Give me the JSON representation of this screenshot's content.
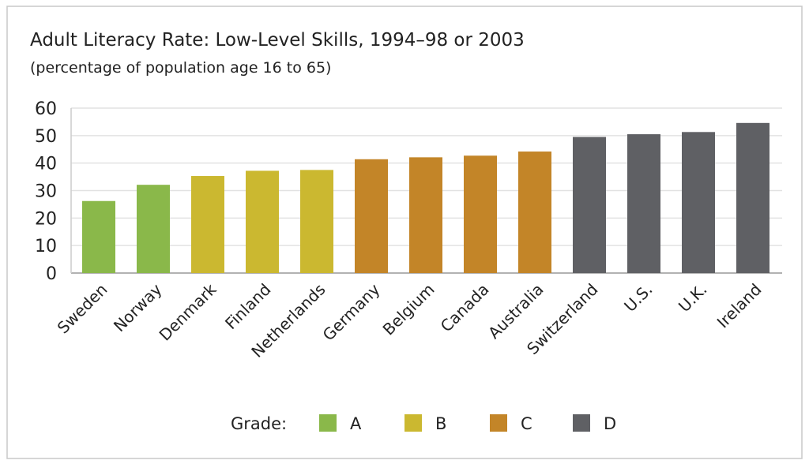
{
  "chart_data": {
    "type": "bar",
    "title": "Adult Literacy Rate: Low-Level Skills, 1994–98 or 2003",
    "subtitle": "(percentage of population age 16 to 65)",
    "xlabel": "",
    "ylabel": "",
    "ylim": [
      0,
      60
    ],
    "yticks": [
      0,
      10,
      20,
      30,
      40,
      50,
      60
    ],
    "grid": true,
    "categories": [
      "Sweden",
      "Norway",
      "Denmark",
      "Finland",
      "Netherlands",
      "Germany",
      "Belgium",
      "Canada",
      "Australia",
      "Switzerland",
      "U.S.",
      "U.K.",
      "Ireland"
    ],
    "values": [
      26.2,
      32.1,
      35.3,
      37.2,
      37.5,
      41.4,
      42.1,
      42.7,
      44.2,
      49.5,
      50.5,
      51.3,
      54.6
    ],
    "grades": [
      "A",
      "A",
      "B",
      "B",
      "B",
      "C",
      "C",
      "C",
      "C",
      "D",
      "D",
      "D",
      "D"
    ],
    "legend": {
      "title": "Grade:",
      "placement": "bottom-center",
      "entries": [
        {
          "label": "A",
          "color": "#8ab84a"
        },
        {
          "label": "B",
          "color": "#cbb830"
        },
        {
          "label": "C",
          "color": "#c38528"
        },
        {
          "label": "D",
          "color": "#5f6064"
        }
      ]
    }
  }
}
